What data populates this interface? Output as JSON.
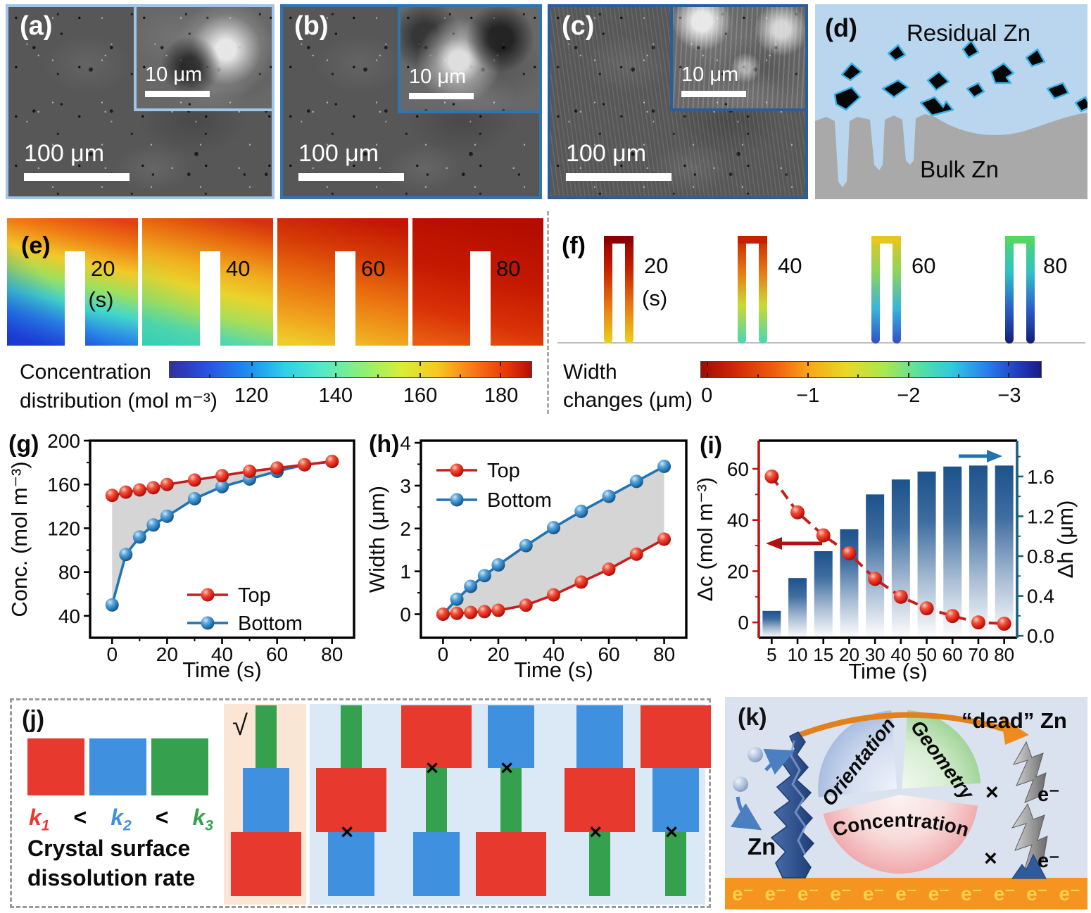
{
  "figure": {
    "panel_a": {
      "label": "(a)",
      "scale_main": "100 μm",
      "scale_inset": "10 μm"
    },
    "panel_b": {
      "label": "(b)",
      "scale_main": "100 μm",
      "scale_inset": "10 μm"
    },
    "panel_c": {
      "label": "(c)",
      "scale_main": "100 μm",
      "scale_inset": "10 μm"
    },
    "panel_d": {
      "label": "(d)",
      "top_label": "Residual Zn",
      "bottom_label": "Bulk Zn"
    },
    "panel_e": {
      "label": "(e)",
      "frames": [
        {
          "time": "20"
        },
        {
          "time": "40"
        },
        {
          "time": "60"
        },
        {
          "time": "80"
        }
      ],
      "time_unit": "(s)",
      "colorbar": {
        "title1": "Concentration",
        "title2": "distribution (mol m⁻³)",
        "ticks": [
          "120",
          "140",
          "160",
          "180"
        ]
      }
    },
    "panel_f": {
      "label": "(f)",
      "frames": [
        {
          "time": "20"
        },
        {
          "time": "40"
        },
        {
          "time": "60"
        },
        {
          "time": "80"
        }
      ],
      "time_unit": "(s)",
      "colorbar": {
        "title1": "Width",
        "title2": "changes  (μm)",
        "ticks": [
          "0",
          "−1",
          "−2",
          "−3"
        ]
      }
    },
    "panel_j": {
      "label": "(j)",
      "check": "√",
      "cross": "×",
      "block_colors": {
        "red": "#e8392f",
        "blue": "#4090e0",
        "green": "#35a14e"
      },
      "k_terms": [
        {
          "sym": "k",
          "sub": "1",
          "color": "#e8392f"
        },
        {
          "sym": "k",
          "sub": "2",
          "color": "#4090e0"
        },
        {
          "sym": "k",
          "sub": "3",
          "color": "#35a14e"
        }
      ],
      "lt": "<",
      "caption1": "Crystal surface",
      "caption2": "dissolution rate",
      "stacks": [
        {
          "order": [
            "green",
            "blue",
            "red"
          ],
          "mark": null,
          "valid": true
        },
        {
          "order": [
            "green",
            "red",
            "blue"
          ],
          "mark": 1
        },
        {
          "order": [
            "red",
            "green",
            "blue"
          ],
          "mark": 0
        },
        {
          "order": [
            "blue",
            "green",
            "red"
          ],
          "mark": 0
        },
        {
          "order": [
            "blue",
            "red",
            "green"
          ],
          "mark": 1
        },
        {
          "order": [
            "red",
            "blue",
            "green"
          ],
          "mark": 1
        }
      ]
    },
    "panel_k": {
      "label": "(k)",
      "dead_label": "“dead” Zn",
      "zn_label": "Zn",
      "cross": "×",
      "electron": "e⁻",
      "electron_count": 11,
      "sectors": [
        {
          "name": "Orientation",
          "color": "#1e78c8"
        },
        {
          "name": "Geometry",
          "color": "#28a04a"
        },
        {
          "name": "Concentration",
          "color": "#b41420"
        }
      ]
    }
  },
  "chart_data": [
    {
      "id": "g",
      "panel_label": "(g)",
      "type": "line",
      "xlabel": "Time (s)",
      "ylabel": "Conc. (mol m⁻³)",
      "xlim": [
        -8,
        88
      ],
      "ylim": [
        20,
        200
      ],
      "xticks": [
        0,
        20,
        40,
        60,
        80
      ],
      "yticks": [
        40,
        80,
        120,
        160,
        200
      ],
      "x": [
        0,
        5,
        10,
        15,
        20,
        30,
        40,
        50,
        60,
        70,
        80
      ],
      "series": [
        {
          "name": "Top",
          "color": "#c3201f",
          "values": [
            150,
            153,
            155,
            157,
            160,
            164,
            168,
            172,
            175,
            178,
            181
          ]
        },
        {
          "name": "Bottom",
          "color": "#2273b2",
          "values": [
            50,
            96,
            112,
            123,
            131,
            147,
            158,
            165,
            172,
            178,
            181
          ]
        }
      ],
      "fill_between": "#cbcbcb",
      "legend_pos": "lower-right"
    },
    {
      "id": "h",
      "panel_label": "(h)",
      "type": "line",
      "xlabel": "Time (s)",
      "ylabel": "Width (μm)",
      "xlim": [
        -8,
        88
      ],
      "ylim": [
        -0.55,
        4.05
      ],
      "xticks": [
        0,
        20,
        40,
        60,
        80
      ],
      "yticks": [
        0,
        1,
        2,
        3,
        4
      ],
      "x": [
        0,
        5,
        10,
        15,
        20,
        30,
        40,
        50,
        60,
        70,
        80
      ],
      "series": [
        {
          "name": "Top",
          "color": "#c3201f",
          "values": [
            0,
            0.02,
            0.04,
            0.06,
            0.09,
            0.21,
            0.45,
            0.75,
            1.05,
            1.4,
            1.75
          ]
        },
        {
          "name": "Bottom",
          "color": "#2273b2",
          "values": [
            0,
            0.35,
            0.65,
            0.9,
            1.15,
            1.6,
            2.02,
            2.4,
            2.75,
            3.1,
            3.45
          ]
        }
      ],
      "fill_between": "#cbcbcb",
      "legend_pos": "upper-left"
    },
    {
      "id": "i",
      "panel_label": "(i)",
      "type": "bar+line",
      "xlabel": "Time (s)",
      "categories": [
        5,
        10,
        15,
        20,
        30,
        40,
        50,
        60,
        70,
        80
      ],
      "left_axis": {
        "label": "Δc (mol m⁻³)",
        "tick_color": "#c01414",
        "ticks": [
          0,
          20,
          40,
          60
        ],
        "lim": [
          -6,
          71
        ],
        "series": {
          "name": "Δc",
          "style": "dashed-line",
          "color": "#c3201f",
          "values": [
            57,
            43,
            34,
            27,
            17,
            10,
            5.5,
            2.5,
            0,
            -0.5
          ]
        }
      },
      "right_axis": {
        "label": "Δh (μm)",
        "tick_color": "#16607a",
        "ticks": [
          "0.0",
          "0.4",
          "0.8",
          "1.2",
          "1.6"
        ],
        "lim": [
          -0.02,
          1.96
        ],
        "series": {
          "name": "Δh",
          "style": "bar",
          "values": [
            0.25,
            0.58,
            0.85,
            1.07,
            1.42,
            1.57,
            1.65,
            1.7,
            1.71,
            1.71
          ]
        }
      }
    }
  ]
}
